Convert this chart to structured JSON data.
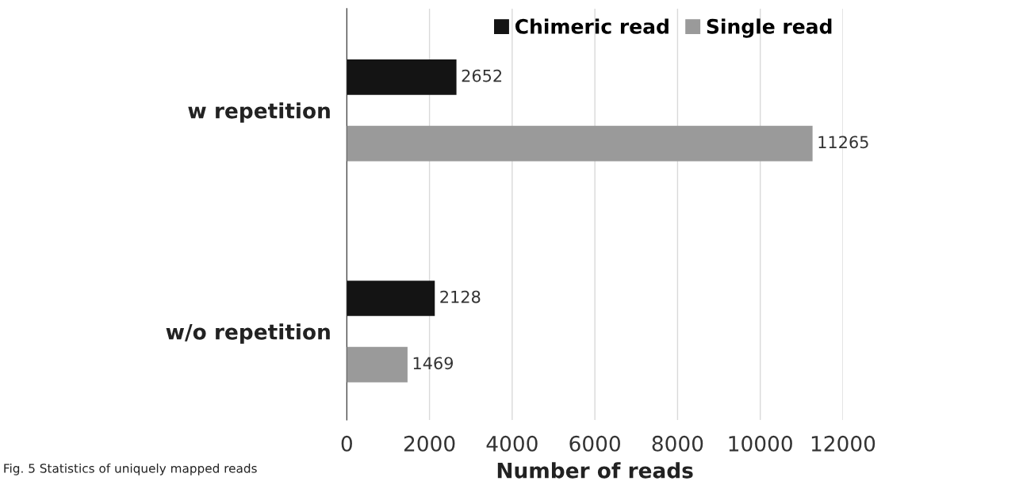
{
  "chart_data": {
    "type": "bar",
    "orientation": "horizontal",
    "categories": [
      "w repetition",
      "w/o repetition"
    ],
    "series": [
      {
        "name": "Chimeric read",
        "color": "#141414",
        "values": [
          2652,
          2128
        ]
      },
      {
        "name": "Single read",
        "color": "#9a9a9a",
        "values": [
          11265,
          1469
        ]
      }
    ],
    "xlabel": "Number of reads",
    "xlim": [
      0,
      12000
    ],
    "xticks": [
      0,
      2000,
      4000,
      6000,
      8000,
      10000,
      12000
    ],
    "grid": "x",
    "legend": "top right",
    "data_labels": true,
    "annotations": [
      "Fig. 5 Statistics of uniquely mapped reads"
    ]
  }
}
